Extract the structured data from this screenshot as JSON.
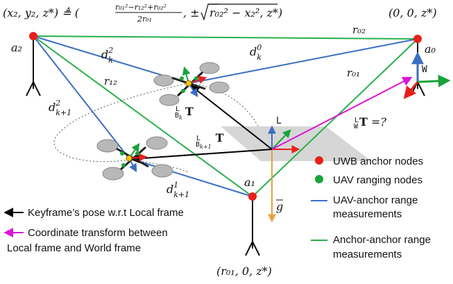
{
  "colors": {
    "uwb_anchor": "#e8201c",
    "uav_node": "#1aa33a",
    "range_blue": "#3a6fc4",
    "range_green": "#28b04a",
    "pose_arrow": "#000000",
    "transform_arrow": "#d914d9",
    "gravity": "#e8a040",
    "axis_red": "#e8201c",
    "axis_green": "#1aa33a",
    "axis_blue": "#3a6fc4",
    "plane": "#bdbdbd",
    "propeller": "#b8b8b8"
  },
  "anchors": {
    "a2_coords": "(x₂, y₂, z*) ≜ (",
    "a2_frac_num": "r₀₁²−r₁₂²+r₀₂²",
    "a2_frac_den": "2r₀₁",
    "a2_sqrt_pre": ", ±",
    "a2_sqrt_body": "r₀₂² − x₂², z*)",
    "a0_coords": "(0, 0, z*)",
    "a1_coords": "(r₀₁, 0, z*)",
    "a2_label": "a₂",
    "a0_label": "a₀",
    "a1_label": "a₁"
  },
  "ranges": {
    "r02": "r₀₂",
    "r01": "r₀₁",
    "r12": "r₁₂",
    "dk2": "d",
    "dk2_sup": "2",
    "dk2_sub": "k",
    "dk0": "d",
    "dk0_sup": "0",
    "dk0_sub": "k",
    "dk1_2": "d",
    "dk1_2_sup": "2",
    "dk1_2_sub": "k+1",
    "dk1_1": "d",
    "dk1_1_sup": "1",
    "dk1_1_sub": "k+1"
  },
  "frames": {
    "w": "W",
    "l": "L",
    "g": "g",
    "t_k_pre": "L",
    "t_k_sub": "B",
    "t_k_subsub": "k",
    "t_k_t": "T",
    "t_k1_pre": "L",
    "t_k1_sub": "B",
    "t_k1_subsub": "k+1",
    "t_k1_t": "T",
    "t_lw_pre": "L",
    "t_lw_sub": "W",
    "t_lw_t": "T",
    "t_lw_q": " =?"
  },
  "legend": {
    "uwb": "UWB anchor nodes",
    "uav": "UAV ranging nodes",
    "uav_anchor_1": "UAV-anchor range",
    "uav_anchor_2": "measurements",
    "anchor_anchor_1": "Anchor-anchor range",
    "anchor_anchor_2": "measurements",
    "keyframe": "Keyframe’s pose w.r.t Local frame",
    "coord_1": "Coordinate transform between",
    "coord_2": "Local frame and World frame"
  }
}
